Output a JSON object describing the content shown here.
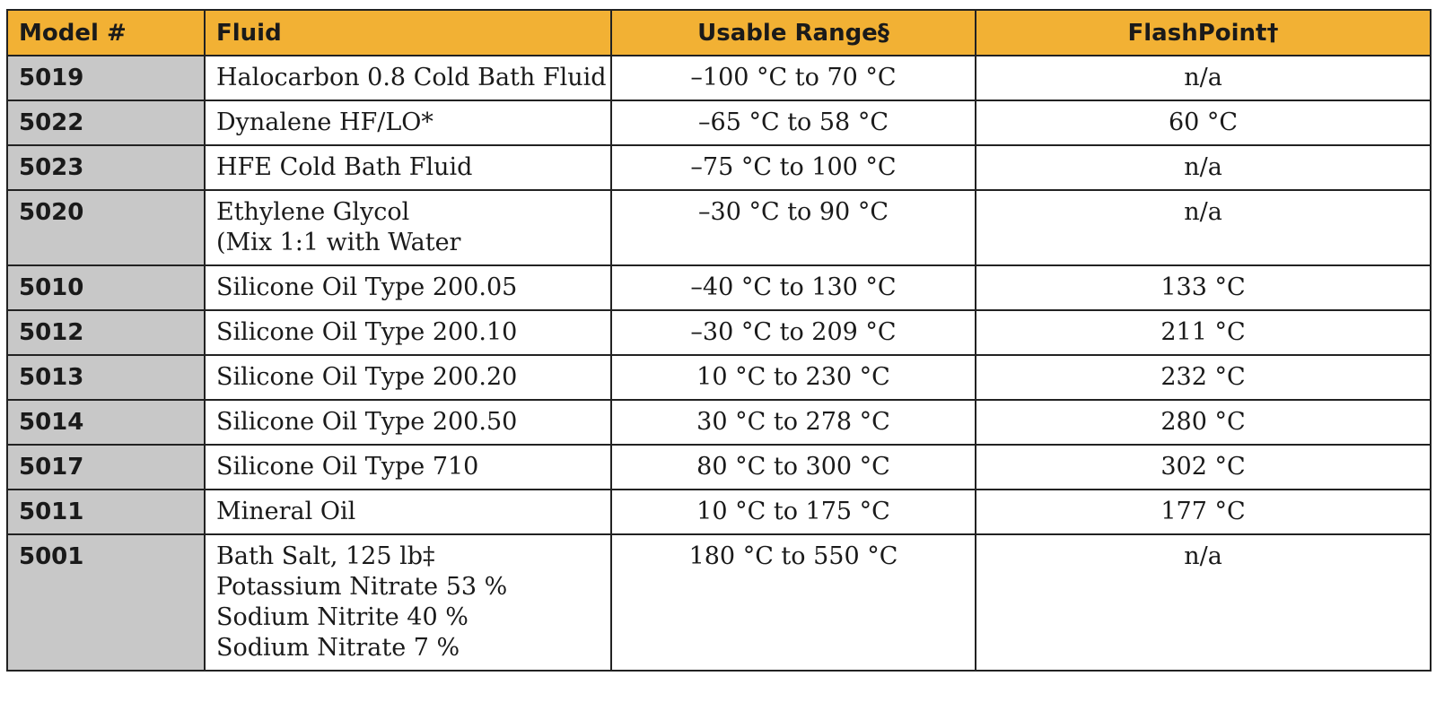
{
  "headers": {
    "model": "Model #",
    "fluid": "Fluid",
    "range": "Usable Range§",
    "flash": "FlashPoint†"
  },
  "rows": [
    {
      "model": "5019",
      "fluid": [
        "Halocarbon 0.8 Cold Bath Fluid"
      ],
      "range": "–100 °C to 70 °C",
      "flash": "n/a"
    },
    {
      "model": "5022",
      "fluid": [
        "Dynalene HF/LO*"
      ],
      "range": "–65 °C to 58 °C",
      "flash": "60 °C"
    },
    {
      "model": "5023",
      "fluid": [
        "HFE Cold Bath Fluid"
      ],
      "range": "–75 °C to 100 °C",
      "flash": "n/a"
    },
    {
      "model": "5020",
      "fluid": [
        "Ethylene Glycol",
        "(Mix 1:1 with Water"
      ],
      "range": "–30 °C to 90 °C",
      "flash": "n/a"
    },
    {
      "model": "5010",
      "fluid": [
        "Silicone Oil Type 200.05"
      ],
      "range": "–40 °C to 130 °C",
      "flash": "133 °C"
    },
    {
      "model": "5012",
      "fluid": [
        "Silicone Oil Type 200.10"
      ],
      "range": "–30 °C to 209 °C",
      "flash": "211 °C"
    },
    {
      "model": "5013",
      "fluid": [
        "Silicone Oil Type 200.20"
      ],
      "range": "10 °C to 230 °C",
      "flash": "232 °C"
    },
    {
      "model": "5014",
      "fluid": [
        "Silicone Oil Type 200.50"
      ],
      "range": "30 °C to 278 °C",
      "flash": "280 °C"
    },
    {
      "model": "5017",
      "fluid": [
        "Silicone Oil Type 710"
      ],
      "range": "80 °C to 300 °C",
      "flash": "302 °C"
    },
    {
      "model": "5011",
      "fluid": [
        "Mineral Oil"
      ],
      "range": "10 °C to 175 °C",
      "flash": "177 °C"
    },
    {
      "model": "5001",
      "fluid": [
        "Bath Salt, 125 lb‡",
        "Potassium Nitrate 53 %",
        "Sodium Nitrite 40 %",
        "Sodium Nitrate 7 %"
      ],
      "range": "180 °C to 550 °C",
      "flash": "n/a"
    }
  ],
  "colors": {
    "header_bg": "#f2b134",
    "model_bg": "#c8c8c8",
    "border": "#222222"
  }
}
